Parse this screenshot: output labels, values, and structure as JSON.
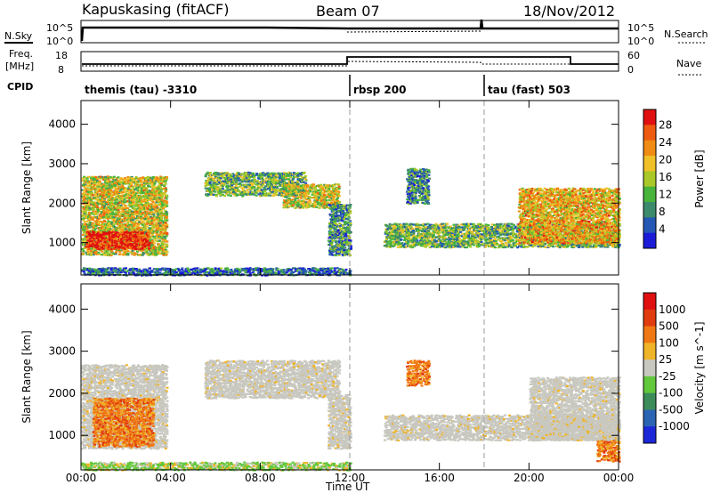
{
  "header": {
    "station": "Kapuskasing (fitACF)",
    "beam": "Beam 07",
    "date": "18/Nov/2012"
  },
  "panels": {
    "nsky_label": "N.Sky",
    "nsky_ticks": [
      "10^5",
      "10^0"
    ],
    "nsearch_label": "N.Search",
    "nsearch_ticks": [
      "10^5",
      "10^0"
    ],
    "freq_label_1": "Freq.",
    "freq_label_2": "[MHz]",
    "freq_ticks": [
      "18",
      "8"
    ],
    "nave_label": "Nave",
    "nave_ticks": [
      "60",
      "0"
    ],
    "cpid_label": "CPID",
    "cpid_segments": [
      {
        "label": "themis (tau) -3310",
        "start_h": 0,
        "end_h": 12
      },
      {
        "label": "rbsp 200",
        "start_h": 12,
        "end_h": 18
      },
      {
        "label": "tau (fast) 503",
        "start_h": 18,
        "end_h": 24
      }
    ]
  },
  "chart_data": [
    {
      "type": "heatmap",
      "title": "",
      "xlabel": "Time UT",
      "ylabel": "Slant Range [km]",
      "xlim": [
        0,
        24
      ],
      "ylim": [
        180,
        4600
      ],
      "x_ticks": [
        "00:00",
        "04:00",
        "08:00",
        "12:00",
        "16:00",
        "20:00",
        "00:00"
      ],
      "y_ticks": [
        1000,
        2000,
        3000,
        4000
      ],
      "colorbar_label": "Power [dB]",
      "colorbar_ticks": [
        "28",
        "24",
        "20",
        "16",
        "12",
        "8",
        "4"
      ],
      "colorbar_colors": [
        "#1c1cd8",
        "#2458b4",
        "#3c8a6c",
        "#48b43c",
        "#aac828",
        "#f0c028",
        "#f08c14",
        "#ee5a10",
        "#e01010"
      ],
      "dashed_time_markers_h": [
        12,
        18
      ],
      "regions": [
        {
          "x": [
            0.0,
            3.8
          ],
          "y": [
            700,
            2700
          ],
          "level": 0.55
        },
        {
          "x": [
            0.2,
            3.0
          ],
          "y": [
            850,
            1300
          ],
          "level": 0.95
        },
        {
          "x": [
            5.5,
            10.0
          ],
          "y": [
            2200,
            2800
          ],
          "level": 0.4
        },
        {
          "x": [
            9.0,
            11.5
          ],
          "y": [
            1900,
            2500
          ],
          "level": 0.55
        },
        {
          "x": [
            11.0,
            12.0
          ],
          "y": [
            700,
            2000
          ],
          "level": 0.3
        },
        {
          "x": [
            13.5,
            24.0
          ],
          "y": [
            900,
            1500
          ],
          "level": 0.4
        },
        {
          "x": [
            19.5,
            24.0
          ],
          "y": [
            1000,
            2400
          ],
          "level": 0.65
        },
        {
          "x": [
            14.5,
            15.5
          ],
          "y": [
            2000,
            2900
          ],
          "level": 0.3
        },
        {
          "x": [
            0.0,
            12.0
          ],
          "y": [
            190,
            380
          ],
          "level": 0.2
        }
      ]
    },
    {
      "type": "heatmap",
      "title": "",
      "xlabel": "Time UT",
      "ylabel": "Slant Range [km]",
      "xlim": [
        0,
        24
      ],
      "ylim": [
        180,
        4600
      ],
      "x_ticks": [
        "00:00",
        "04:00",
        "08:00",
        "12:00",
        "16:00",
        "20:00",
        "00:00"
      ],
      "y_ticks": [
        1000,
        2000,
        3000,
        4000
      ],
      "colorbar_label": "Velocity [m s^-1]",
      "colorbar_ticks": [
        "1000",
        "500",
        "100",
        "25",
        "-25",
        "-100",
        "-500",
        "-1000"
      ],
      "colorbar_colors": [
        "#1c28d8",
        "#2c64b4",
        "#3c8c5a",
        "#62c83c",
        "#c8c8c0",
        "#f0b428",
        "#f07814",
        "#e03c10",
        "#e01010"
      ],
      "dashed_time_markers_h": [
        12,
        18
      ],
      "regions": [
        {
          "x": [
            0.0,
            3.8
          ],
          "y": [
            700,
            2700
          ],
          "cls": "ground"
        },
        {
          "x": [
            0.5,
            3.2
          ],
          "y": [
            750,
            1900
          ],
          "cls": "orange"
        },
        {
          "x": [
            5.5,
            11.5
          ],
          "y": [
            1900,
            2800
          ],
          "cls": "ground"
        },
        {
          "x": [
            11.0,
            12.0
          ],
          "y": [
            700,
            2000
          ],
          "cls": "ground"
        },
        {
          "x": [
            14.5,
            15.5
          ],
          "y": [
            2200,
            2800
          ],
          "cls": "orange"
        },
        {
          "x": [
            13.5,
            24.0
          ],
          "y": [
            900,
            1500
          ],
          "cls": "ground"
        },
        {
          "x": [
            20.0,
            24.0
          ],
          "y": [
            900,
            2400
          ],
          "cls": "ground"
        },
        {
          "x": [
            23.0,
            24.0
          ],
          "y": [
            400,
            900
          ],
          "cls": "orange"
        },
        {
          "x": [
            0.0,
            12.0
          ],
          "y": [
            190,
            380
          ],
          "cls": "green"
        }
      ]
    }
  ]
}
